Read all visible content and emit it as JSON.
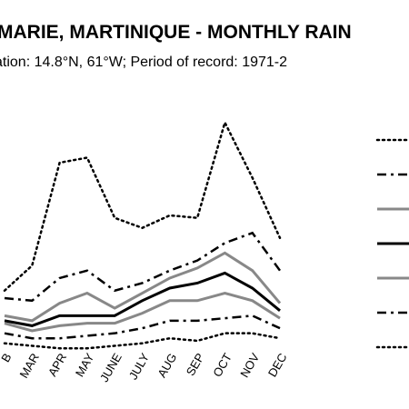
{
  "header": {
    "title": "MARIE, MARTINIQUE - MONTHLY RAIN",
    "subtitle": "ation: 14.8°N, 61°W; Period of record: 1971-2"
  },
  "chart_data": {
    "type": "line",
    "title": "MARIE, MARTINIQUE - MONTHLY RAIN",
    "subtitle": "ation: 14.8°N, 61°W; Period of record: 1971-2",
    "categories": [
      "B",
      "MAR",
      "APR",
      "MAY",
      "JUNE",
      "JULY",
      "AUG",
      "SEP",
      "OCT",
      "NOV",
      "DEC"
    ],
    "ylim": [
      0,
      100
    ],
    "grid": false,
    "legend_position": "right",
    "series": [
      {
        "style": "dotted",
        "color": "#000000",
        "values": [
          24,
          34,
          75,
          77,
          53,
          49,
          54,
          53,
          91,
          69,
          45
        ]
      },
      {
        "style": "dashdot",
        "color": "#000000",
        "values": [
          21,
          20,
          29,
          32,
          24,
          27,
          32,
          36,
          43,
          47,
          32
        ]
      },
      {
        "style": "solid-gray",
        "color": "#888888",
        "values": [
          14,
          12,
          19,
          23,
          17,
          23,
          29,
          33,
          39,
          32,
          19
        ]
      },
      {
        "style": "solid-black",
        "color": "#000000",
        "values": [
          12,
          10,
          14,
          14,
          14,
          20,
          25,
          27,
          31,
          25,
          16
        ]
      },
      {
        "style": "solid-gray",
        "color": "#888888",
        "values": [
          11,
          8,
          10,
          11,
          11,
          15,
          20,
          20,
          23,
          20,
          13
        ]
      },
      {
        "style": "dashdot",
        "color": "#000000",
        "values": [
          7,
          5,
          5,
          6,
          7,
          9,
          12,
          12,
          13,
          14,
          9
        ]
      },
      {
        "style": "dotted",
        "color": "#000000",
        "values": [
          3,
          2,
          1,
          1,
          2,
          3,
          5,
          4,
          7,
          7,
          5
        ]
      }
    ]
  }
}
